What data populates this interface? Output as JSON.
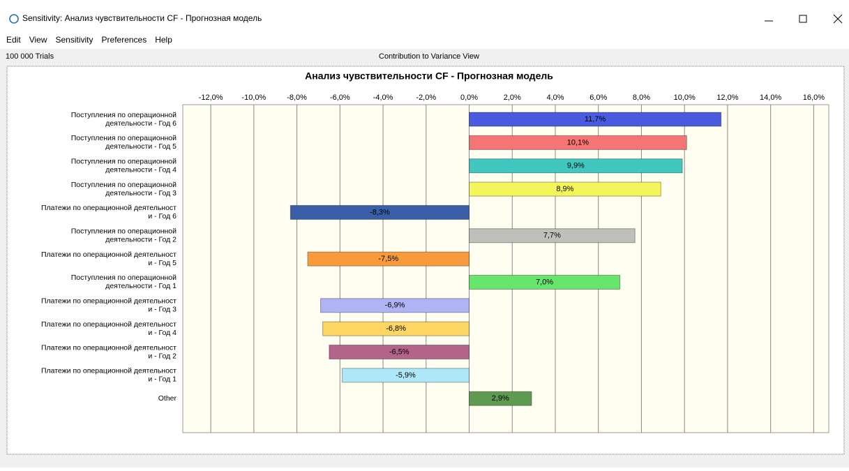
{
  "window": {
    "title": "Sensitivity: Анализ чувствительности CF - Прогнозная модель"
  },
  "menu": [
    "Edit",
    "View",
    "Sensitivity",
    "Preferences",
    "Help"
  ],
  "status": {
    "trials": "100 000 Trials",
    "view": "Contribution to Variance View"
  },
  "chart_data": {
    "type": "hbar",
    "title": "Анализ чувствительности CF - Прогнозная модель",
    "categories": [
      [
        "Поступления по операционной",
        "деятельности - Год 6"
      ],
      [
        "Поступления по операционной",
        "деятельности - Год 5"
      ],
      [
        "Поступления по операционной",
        "деятельности - Год 4"
      ],
      [
        "Поступления по операционной",
        "деятельности - Год 3"
      ],
      [
        "Платежи по операционной деятельност",
        "и - Год 6"
      ],
      [
        "Поступления по операционной",
        "деятельности - Год 2"
      ],
      [
        "Платежи по операционной деятельност",
        "и - Год 5"
      ],
      [
        "Поступления по операционной",
        "деятельности - Год 1"
      ],
      [
        "Платежи по операционной деятельност",
        "и - Год 3"
      ],
      [
        "Платежи по операционной деятельност",
        "и - Год 4"
      ],
      [
        "Платежи по операционной деятельност",
        "и - Год 2"
      ],
      [
        "Платежи по операционной деятельност",
        "и - Год 1"
      ],
      [
        "Other"
      ]
    ],
    "values": [
      11.7,
      10.1,
      9.9,
      8.9,
      -8.3,
      7.7,
      -7.5,
      7.0,
      -6.9,
      -6.8,
      -6.5,
      -5.9,
      2.9
    ],
    "value_labels": [
      "11,7%",
      "10,1%",
      "9,9%",
      "8,9%",
      "-8,3%",
      "7,7%",
      "-7,5%",
      "7,0%",
      "-6,9%",
      "-6,8%",
      "-6,5%",
      "-5,9%",
      "2,9%"
    ],
    "colors": [
      "#4a5be0",
      "#f57474",
      "#3fc7c0",
      "#f4f55a",
      "#3a5ea8",
      "#c0c0bb",
      "#f99b3c",
      "#66e66c",
      "#b0b4f4",
      "#fed664",
      "#b4648a",
      "#aee8f8",
      "#5e9a50"
    ],
    "label_colors": [
      "#ffffff",
      "#000000",
      "#ffffff",
      "#000000",
      "#ffffff",
      "#000000",
      "#ffffff",
      "#000000",
      "#000000",
      "#000000",
      "#ffffff",
      "#000000",
      "#ffffff"
    ],
    "xlim": [
      -13.3,
      16.7
    ],
    "xticks": [
      {
        "value": -12,
        "label": "-12,0%"
      },
      {
        "value": -10,
        "label": "-10,0%"
      },
      {
        "value": -8,
        "label": "-8,0%"
      },
      {
        "value": -6,
        "label": "-6,0%"
      },
      {
        "value": -4,
        "label": "-4,0%"
      },
      {
        "value": -2,
        "label": "-2,0%"
      },
      {
        "value": 0,
        "label": "0,0%"
      },
      {
        "value": 2,
        "label": "2,0%"
      },
      {
        "value": 4,
        "label": "4,0%"
      },
      {
        "value": 6,
        "label": "6,0%"
      },
      {
        "value": 8,
        "label": "8,0%"
      },
      {
        "value": 10,
        "label": "10,0%"
      },
      {
        "value": 12,
        "label": "12,0%"
      },
      {
        "value": 14,
        "label": "14,0%"
      },
      {
        "value": 16,
        "label": "16,0%"
      }
    ],
    "grid": true
  }
}
